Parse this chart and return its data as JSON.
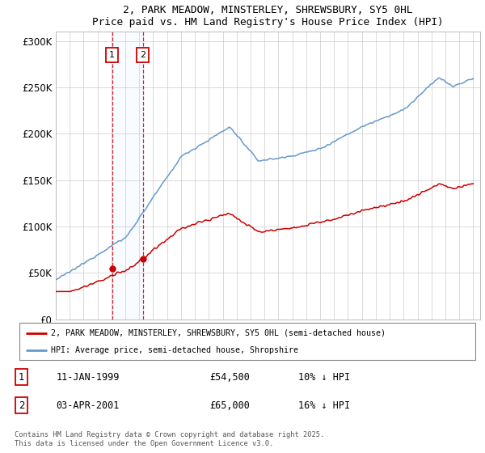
{
  "title_line1": "2, PARK MEADOW, MINSTERLEY, SHREWSBURY, SY5 0HL",
  "title_line2": "Price paid vs. HM Land Registry's House Price Index (HPI)",
  "ylim": [
    0,
    310000
  ],
  "yticks": [
    0,
    50000,
    100000,
    150000,
    200000,
    250000,
    300000
  ],
  "ytick_labels": [
    "£0",
    "£50K",
    "£100K",
    "£150K",
    "£200K",
    "£250K",
    "£300K"
  ],
  "legend_label_red": "2, PARK MEADOW, MINSTERLEY, SHREWSBURY, SY5 0HL (semi-detached house)",
  "legend_label_blue": "HPI: Average price, semi-detached house, Shropshire",
  "footnote": "Contains HM Land Registry data © Crown copyright and database right 2025.\nThis data is licensed under the Open Government Licence v3.0.",
  "sale1_date_label": "11-JAN-1999",
  "sale1_price_label": "£54,500",
  "sale1_hpi_label": "10% ↓ HPI",
  "sale2_date_label": "03-APR-2001",
  "sale2_price_label": "£65,000",
  "sale2_hpi_label": "16% ↓ HPI",
  "sale1_x": 1999.04,
  "sale1_y": 54500,
  "sale2_x": 2001.25,
  "sale2_y": 65000,
  "red_color": "#cc0000",
  "blue_color": "#6699cc",
  "vline_color": "#cc0000",
  "shade_color": "#ddeeff",
  "background_color": "#ffffff",
  "grid_color": "#cccccc",
  "xlim_left": 1995.0,
  "xlim_right": 2025.5
}
